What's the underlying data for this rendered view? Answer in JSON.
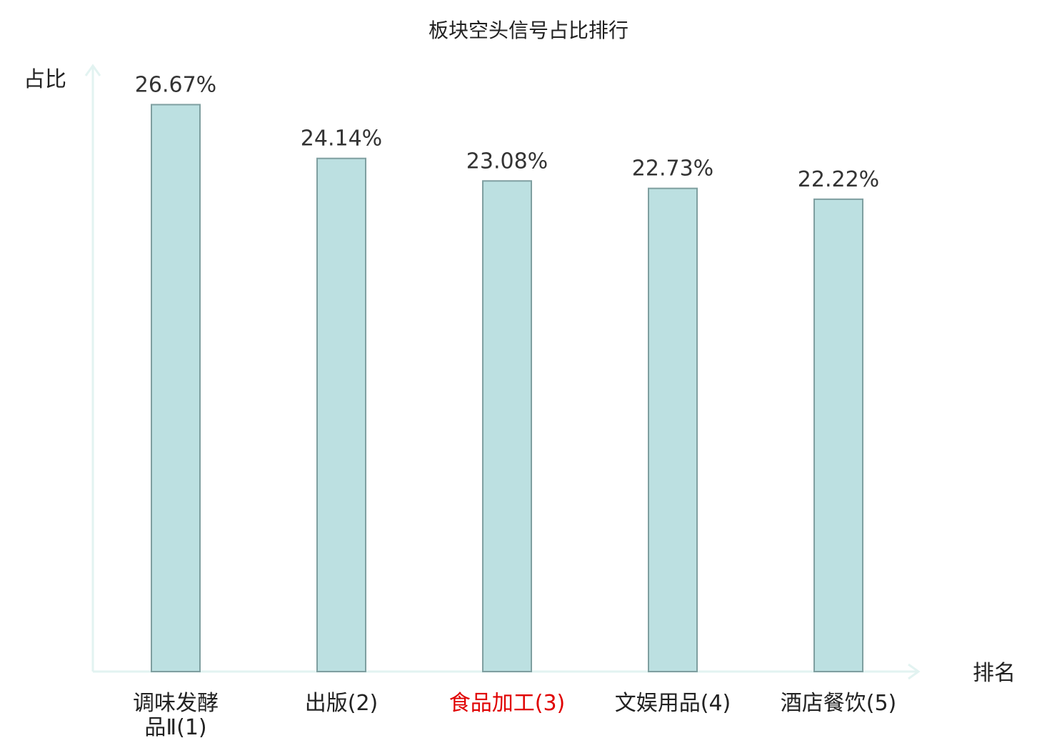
{
  "chart_data": {
    "type": "bar",
    "title": "板块空头信号占比排行",
    "ylabel": "占比",
    "xlabel": "排名",
    "categories": [
      {
        "lines": [
          "调味发酵",
          "品Ⅱ(1)"
        ],
        "highlight": false
      },
      {
        "lines": [
          "出版(2)"
        ],
        "highlight": false
      },
      {
        "lines": [
          "食品加工(3)"
        ],
        "highlight": true
      },
      {
        "lines": [
          "文娱用品(4)"
        ],
        "highlight": false
      },
      {
        "lines": [
          "酒店餐饮(5)"
        ],
        "highlight": false
      }
    ],
    "values": [
      26.67,
      24.14,
      23.08,
      22.73,
      22.22
    ],
    "value_labels": [
      "26.67%",
      "24.14%",
      "23.08%",
      "22.73%",
      "22.22%"
    ],
    "ylim": [
      0,
      28.5
    ],
    "grid": false,
    "colors": {
      "bar_fill": "#bce0e1",
      "bar_stroke": "#7f9fa0",
      "axis": "#e2f3f1",
      "highlight_text": "#e00000",
      "normal_text": "#222222"
    }
  }
}
